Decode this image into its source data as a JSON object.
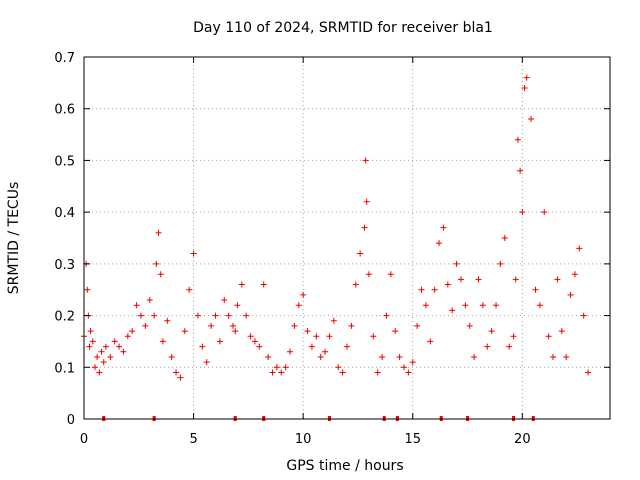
{
  "chart_data": {
    "type": "scatter",
    "title": "Day 110 of 2024, SRMTID for receiver bla1",
    "xlabel": "GPS time / hours",
    "ylabel": "SRMTID / TECUs",
    "xlim": [
      0,
      24
    ],
    "ylim": [
      0,
      0.7
    ],
    "xticks": [
      "0",
      "5",
      "10",
      "15",
      "20"
    ],
    "xtick_values": [
      0,
      5,
      10,
      15,
      20
    ],
    "yticks": [
      "0",
      "0.1",
      "0.2",
      "0.3",
      "0.4",
      "0.5",
      "0.6",
      "0.7"
    ],
    "ytick_values": [
      0,
      0.1,
      0.2,
      0.3,
      0.4,
      0.5,
      0.6,
      0.7
    ],
    "grid": true,
    "marker": "+",
    "color": "#ee0000",
    "baseline_markers_x": [
      0.9,
      3.2,
      6.9,
      8.2,
      11.2,
      13.7,
      14.3,
      16.3,
      17.5,
      19.6,
      20.5
    ],
    "series": [
      {
        "name": "SRMTID",
        "x": [
          0.0,
          0.1,
          0.15,
          0.2,
          0.25,
          0.3,
          0.4,
          0.5,
          0.6,
          0.7,
          0.8,
          0.9,
          1.0,
          1.2,
          1.4,
          1.6,
          1.8,
          2.0,
          2.2,
          2.4,
          2.6,
          2.8,
          3.0,
          3.2,
          3.3,
          3.4,
          3.5,
          3.6,
          3.8,
          4.0,
          4.2,
          4.4,
          4.6,
          4.8,
          5.0,
          5.2,
          5.4,
          5.6,
          5.8,
          6.0,
          6.2,
          6.4,
          6.6,
          6.8,
          6.9,
          7.0,
          7.2,
          7.4,
          7.6,
          7.8,
          8.0,
          8.2,
          8.4,
          8.6,
          8.8,
          9.0,
          9.2,
          9.4,
          9.6,
          9.8,
          10.0,
          10.2,
          10.4,
          10.6,
          10.8,
          11.0,
          11.2,
          11.4,
          11.6,
          11.8,
          12.0,
          12.2,
          12.4,
          12.6,
          12.8,
          12.85,
          12.9,
          13.0,
          13.2,
          13.4,
          13.6,
          13.8,
          14.0,
          14.2,
          14.4,
          14.6,
          14.8,
          15.0,
          15.2,
          15.4,
          15.6,
          15.8,
          16.0,
          16.2,
          16.4,
          16.6,
          16.8,
          17.0,
          17.2,
          17.4,
          17.6,
          17.8,
          18.0,
          18.2,
          18.4,
          18.6,
          18.8,
          19.0,
          19.2,
          19.4,
          19.6,
          19.7,
          19.8,
          19.9,
          20.0,
          20.1,
          20.2,
          20.4,
          20.6,
          20.8,
          21.0,
          21.2,
          21.4,
          21.6,
          21.8,
          22.0,
          22.2,
          22.4,
          22.6,
          22.8,
          23.0
        ],
        "y": [
          0.16,
          0.3,
          0.25,
          0.2,
          0.14,
          0.17,
          0.15,
          0.1,
          0.12,
          0.09,
          0.13,
          0.11,
          0.14,
          0.12,
          0.15,
          0.14,
          0.13,
          0.16,
          0.17,
          0.22,
          0.2,
          0.18,
          0.23,
          0.2,
          0.3,
          0.36,
          0.28,
          0.15,
          0.19,
          0.12,
          0.09,
          0.08,
          0.17,
          0.25,
          0.32,
          0.2,
          0.14,
          0.11,
          0.18,
          0.2,
          0.15,
          0.23,
          0.2,
          0.18,
          0.17,
          0.22,
          0.26,
          0.2,
          0.16,
          0.15,
          0.14,
          0.26,
          0.12,
          0.09,
          0.1,
          0.09,
          0.1,
          0.13,
          0.18,
          0.22,
          0.24,
          0.17,
          0.14,
          0.16,
          0.12,
          0.13,
          0.16,
          0.19,
          0.1,
          0.09,
          0.14,
          0.18,
          0.26,
          0.32,
          0.37,
          0.5,
          0.42,
          0.28,
          0.16,
          0.09,
          0.12,
          0.2,
          0.28,
          0.17,
          0.12,
          0.1,
          0.09,
          0.11,
          0.18,
          0.25,
          0.22,
          0.15,
          0.25,
          0.34,
          0.37,
          0.26,
          0.21,
          0.3,
          0.27,
          0.22,
          0.18,
          0.12,
          0.27,
          0.22,
          0.14,
          0.17,
          0.22,
          0.3,
          0.35,
          0.14,
          0.16,
          0.27,
          0.54,
          0.48,
          0.4,
          0.64,
          0.66,
          0.58,
          0.25,
          0.22,
          0.4,
          0.16,
          0.12,
          0.27,
          0.17,
          0.12,
          0.24,
          0.28,
          0.33,
          0.2,
          0.09
        ]
      }
    ]
  }
}
